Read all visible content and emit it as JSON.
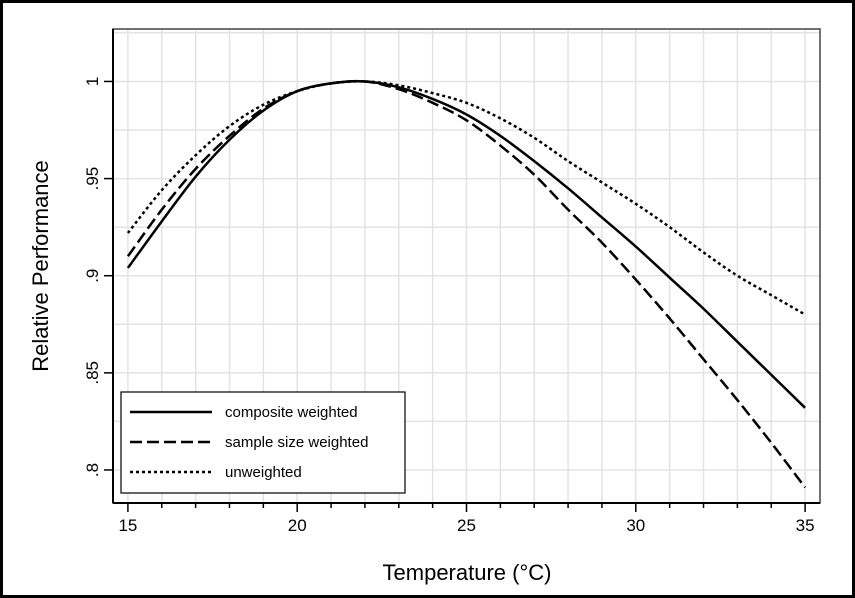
{
  "chart_data": {
    "type": "line",
    "title": "",
    "xlabel": "Temperature (°C)",
    "ylabel": "Relative Performance",
    "xlim": [
      14.56,
      35.44
    ],
    "ylim": [
      0.783,
      1.027
    ],
    "grid": true,
    "x_ticks": [
      15,
      20,
      25,
      30,
      35
    ],
    "x_tick_labels": [
      "15",
      "20",
      "25",
      "30",
      "35"
    ],
    "y_ticks": [
      0.8,
      0.85,
      0.9,
      0.95,
      1
    ],
    "y_tick_labels": [
      ".8",
      ".85",
      ".9",
      ".95",
      "1"
    ],
    "legend_position": "bottom-left",
    "x": [
      15,
      16,
      17,
      18,
      19,
      20,
      21,
      22,
      23,
      24,
      25,
      26,
      27,
      28,
      29,
      30,
      31,
      32,
      33,
      34,
      35
    ],
    "series": [
      {
        "name": "composite weighted",
        "style": "solid",
        "values": [
          0.904,
          0.928,
          0.951,
          0.97,
          0.985,
          0.995,
          0.999,
          1.0,
          0.997,
          0.991,
          0.983,
          0.972,
          0.959,
          0.945,
          0.93,
          0.915,
          0.899,
          0.883,
          0.866,
          0.849,
          0.832
        ]
      },
      {
        "name": "sample size weighted",
        "style": "dashed",
        "values": [
          0.91,
          0.934,
          0.955,
          0.972,
          0.986,
          0.995,
          0.999,
          1.0,
          0.996,
          0.989,
          0.98,
          0.967,
          0.952,
          0.934,
          0.917,
          0.898,
          0.878,
          0.857,
          0.836,
          0.814,
          0.791
        ]
      },
      {
        "name": "unweighted",
        "style": "dotted",
        "values": [
          0.922,
          0.944,
          0.962,
          0.977,
          0.988,
          0.995,
          0.999,
          1.0,
          0.998,
          0.994,
          0.989,
          0.981,
          0.971,
          0.959,
          0.948,
          0.937,
          0.925,
          0.912,
          0.9,
          0.89,
          0.88
        ]
      }
    ]
  }
}
